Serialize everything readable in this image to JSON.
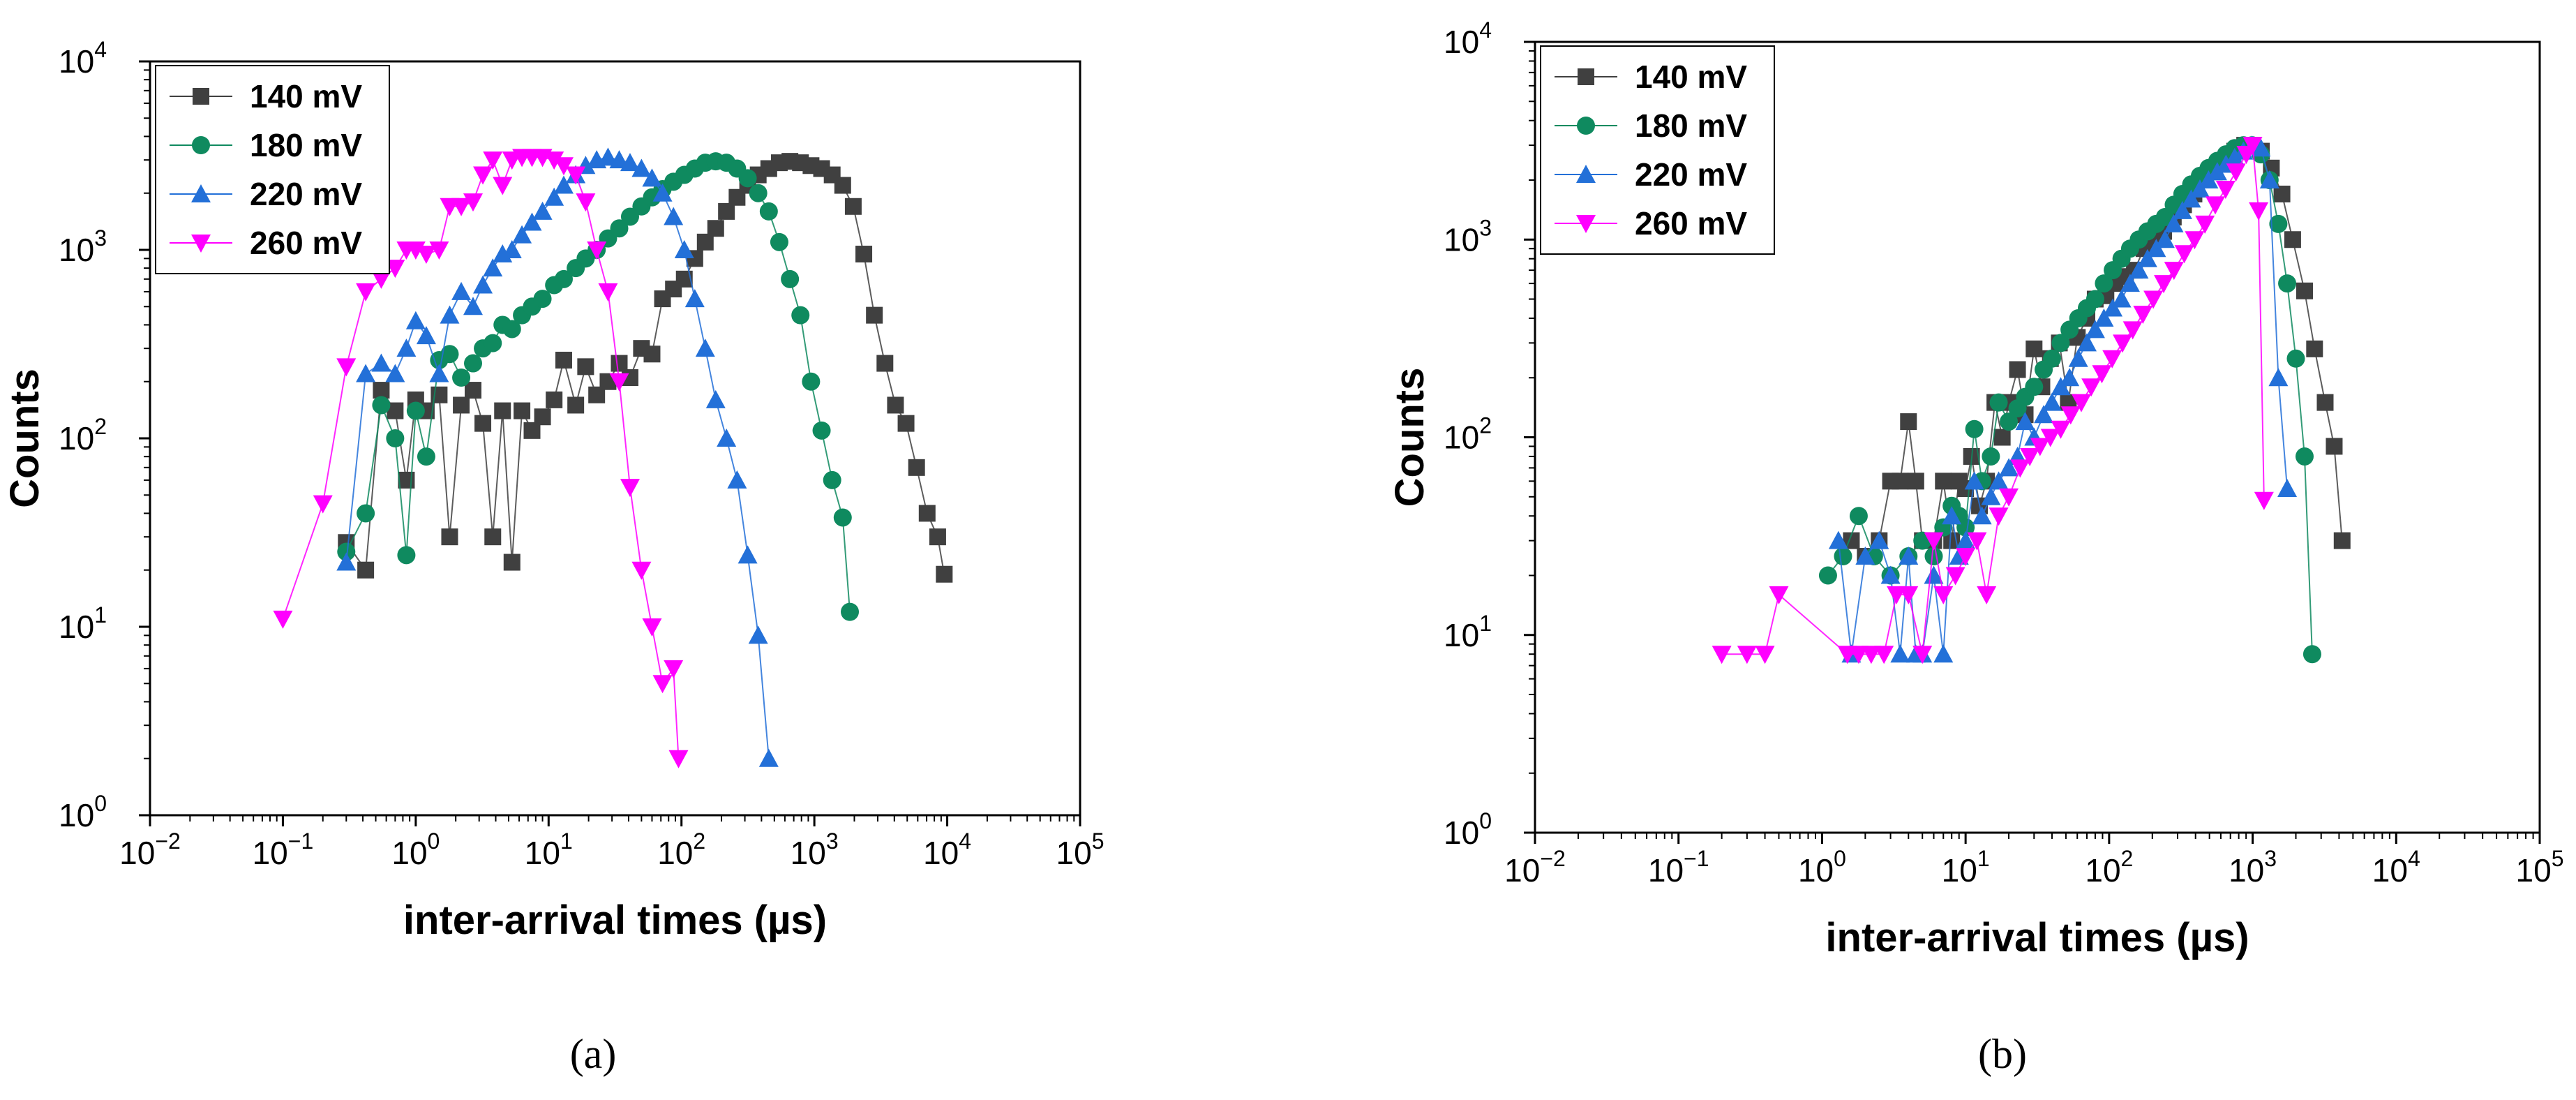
{
  "chart_data": [
    {
      "type": "scatter",
      "caption": "(a)",
      "xlabel": "inter-arrival times (µs)",
      "ylabel": "Counts",
      "xscale": "log",
      "yscale": "log",
      "xlim": [
        0.01,
        100000
      ],
      "ylim": [
        1,
        10000
      ],
      "xticks": [
        {
          "base": "10",
          "exp": "−2"
        },
        {
          "base": "10",
          "exp": "−1"
        },
        {
          "base": "10",
          "exp": "0"
        },
        {
          "base": "10",
          "exp": "1"
        },
        {
          "base": "10",
          "exp": "2"
        },
        {
          "base": "10",
          "exp": "3"
        },
        {
          "base": "10",
          "exp": "4"
        },
        {
          "base": "10",
          "exp": "5"
        }
      ],
      "yticks": [
        {
          "base": "10",
          "exp": "0"
        },
        {
          "base": "10",
          "exp": "1"
        },
        {
          "base": "10",
          "exp": "2"
        },
        {
          "base": "10",
          "exp": "3"
        },
        {
          "base": "10",
          "exp": "4"
        }
      ],
      "legend_position": "top-left",
      "series": [
        {
          "name": "140 mV",
          "color": "#404040",
          "marker": "square",
          "x": [
            0.3,
            0.42,
            0.55,
            0.7,
            0.85,
            1.0,
            1.2,
            1.5,
            1.8,
            2.2,
            2.7,
            3.2,
            3.8,
            4.5,
            5.3,
            6.3,
            7.5,
            9,
            11,
            13,
            16,
            19,
            23,
            28,
            34,
            41,
            50,
            60,
            72,
            87,
            105,
            126,
            151,
            181,
            218,
            262,
            315,
            378,
            454,
            545,
            655,
            786,
            944,
            1134,
            1362,
            1635,
            1963,
            2357,
            2830,
            3398,
            4080,
            4899,
            5882,
            7062,
            8480,
            9500
          ],
          "y": [
            28,
            20,
            180,
            140,
            60,
            160,
            140,
            170,
            30,
            150,
            180,
            120,
            30,
            140,
            22,
            140,
            110,
            130,
            160,
            260,
            150,
            240,
            170,
            200,
            250,
            210,
            300,
            280,
            550,
            620,
            700,
            900,
            1100,
            1300,
            1600,
            1900,
            2200,
            2500,
            2700,
            2900,
            2950,
            2900,
            2800,
            2700,
            2500,
            2200,
            1700,
            950,
            450,
            250,
            150,
            120,
            70,
            40,
            30,
            19
          ]
        },
        {
          "name": "180 mV",
          "color": "#0f8a5f",
          "marker": "circle",
          "x": [
            0.3,
            0.42,
            0.55,
            0.7,
            0.85,
            1.0,
            1.2,
            1.5,
            1.8,
            2.2,
            2.7,
            3.2,
            3.8,
            4.5,
            5.3,
            6.3,
            7.5,
            9,
            11,
            13,
            16,
            19,
            23,
            28,
            34,
            41,
            50,
            60,
            72,
            87,
            105,
            126,
            151,
            181,
            218,
            262,
            315,
            378,
            454,
            545,
            655,
            786,
            944,
            1134,
            1362,
            1635,
            1850
          ],
          "y": [
            25,
            40,
            150,
            100,
            24,
            140,
            80,
            260,
            280,
            210,
            250,
            300,
            320,
            400,
            380,
            450,
            500,
            550,
            650,
            700,
            800,
            900,
            1000,
            1150,
            1300,
            1500,
            1700,
            1900,
            2100,
            2300,
            2500,
            2700,
            2900,
            2950,
            2900,
            2700,
            2400,
            2000,
            1600,
            1100,
            700,
            450,
            200,
            110,
            60,
            38,
            12
          ]
        },
        {
          "name": "220 mV",
          "color": "#2370d8",
          "marker": "triangle-up",
          "x": [
            0.3,
            0.42,
            0.55,
            0.7,
            0.85,
            1.0,
            1.2,
            1.5,
            1.8,
            2.2,
            2.7,
            3.2,
            3.8,
            4.5,
            5.3,
            6.3,
            7.5,
            9,
            11,
            13,
            16,
            19,
            23,
            28,
            34,
            41,
            50,
            60,
            72,
            87,
            105,
            126,
            151,
            181,
            218,
            262,
            315,
            378,
            454
          ],
          "y": [
            22,
            220,
            250,
            220,
            300,
            420,
            350,
            220,
            450,
            600,
            500,
            650,
            800,
            950,
            1000,
            1200,
            1400,
            1600,
            1900,
            2200,
            2500,
            2800,
            3000,
            3100,
            3000,
            2900,
            2700,
            2400,
            2000,
            1500,
            1000,
            550,
            300,
            160,
            100,
            60,
            24,
            9,
            2
          ]
        },
        {
          "name": "260 mV",
          "color": "#ff00ff",
          "marker": "triangle-down",
          "x": [
            0.1,
            0.2,
            0.3,
            0.42,
            0.55,
            0.7,
            0.85,
            1.0,
            1.2,
            1.5,
            1.8,
            2.2,
            2.7,
            3.2,
            3.8,
            4.5,
            5.3,
            6.3,
            7.5,
            9,
            11,
            13,
            16,
            19,
            23,
            28,
            34,
            41,
            50,
            60,
            72,
            87,
            95
          ],
          "y": [
            11,
            45,
            240,
            600,
            700,
            800,
            1000,
            1000,
            950,
            1000,
            1700,
            1700,
            1800,
            2500,
            3000,
            2200,
            3000,
            3100,
            3100,
            3100,
            3000,
            2800,
            2500,
            1800,
            1000,
            600,
            200,
            55,
            20,
            10,
            5,
            6,
            2
          ]
        }
      ]
    },
    {
      "type": "scatter",
      "caption": "(b)",
      "xlabel": "inter-arrival times (µs)",
      "ylabel": "Counts",
      "xscale": "log",
      "yscale": "log",
      "xlim": [
        0.01,
        100000
      ],
      "ylim": [
        1,
        10000
      ],
      "xticks": [
        {
          "base": "10",
          "exp": "−2"
        },
        {
          "base": "10",
          "exp": "−1"
        },
        {
          "base": "10",
          "exp": "0"
        },
        {
          "base": "10",
          "exp": "1"
        },
        {
          "base": "10",
          "exp": "2"
        },
        {
          "base": "10",
          "exp": "3"
        },
        {
          "base": "10",
          "exp": "4"
        },
        {
          "base": "10",
          "exp": "5"
        }
      ],
      "yticks": [
        {
          "base": "10",
          "exp": "0"
        },
        {
          "base": "10",
          "exp": "1"
        },
        {
          "base": "10",
          "exp": "2"
        },
        {
          "base": "10",
          "exp": "3"
        },
        {
          "base": "10",
          "exp": "4"
        }
      ],
      "legend_position": "top-left",
      "series": [
        {
          "name": "140 mV",
          "color": "#404040",
          "marker": "square",
          "x": [
            1.6,
            2.0,
            2.5,
            3.0,
            3.5,
            4.0,
            4.5,
            5,
            6,
            7,
            8,
            9,
            10,
            11,
            12.5,
            14,
            16,
            18,
            20,
            23,
            26,
            30,
            34,
            39,
            45,
            52,
            60,
            70,
            80,
            95,
            110,
            130,
            150,
            175,
            200,
            240,
            280,
            330,
            390,
            460,
            540,
            640,
            750,
            880,
            1000,
            1150,
            1350,
            1600,
            1900,
            2300,
            2700,
            3200,
            3700,
            4200
          ],
          "y": [
            30,
            25,
            30,
            60,
            60,
            120,
            60,
            30,
            30,
            60,
            30,
            60,
            55,
            80,
            45,
            60,
            150,
            100,
            150,
            220,
            130,
            280,
            180,
            250,
            300,
            150,
            320,
            400,
            500,
            520,
            600,
            650,
            700,
            900,
            1000,
            1100,
            1300,
            1500,
            1700,
            2000,
            2200,
            2500,
            2800,
            3000,
            3000,
            2800,
            2300,
            1700,
            1000,
            550,
            280,
            150,
            90,
            30
          ]
        },
        {
          "name": "180 mV",
          "color": "#0f8a5f",
          "marker": "circle",
          "x": [
            1.1,
            1.4,
            1.8,
            2.3,
            3,
            4,
            5,
            6,
            7,
            8,
            9,
            10,
            11.5,
            13,
            15,
            17,
            20,
            23,
            26,
            30,
            35,
            40,
            46,
            53,
            61,
            70,
            80,
            92,
            106,
            122,
            140,
            161,
            185,
            213,
            245,
            282,
            324,
            373,
            429,
            493,
            567,
            652,
            750,
            862,
            992,
            1140,
            1312,
            1510,
            1740,
            2000,
            2300,
            2600
          ],
          "y": [
            20,
            25,
            40,
            25,
            20,
            25,
            30,
            25,
            35,
            45,
            40,
            35,
            110,
            60,
            80,
            150,
            120,
            140,
            160,
            180,
            220,
            250,
            300,
            350,
            400,
            450,
            500,
            600,
            700,
            800,
            900,
            1000,
            1100,
            1200,
            1300,
            1500,
            1700,
            1900,
            2100,
            2300,
            2500,
            2700,
            2900,
            3000,
            3000,
            2700,
            2000,
            1200,
            600,
            250,
            80,
            8
          ]
        },
        {
          "name": "220 mV",
          "color": "#2370d8",
          "marker": "triangle-up",
          "x": [
            1.3,
            1.6,
            2.0,
            2.5,
            3.0,
            3.5,
            4.0,
            4.5,
            5,
            6,
            7,
            8,
            9,
            10,
            11.5,
            13,
            15,
            17,
            20,
            23,
            26,
            30,
            35,
            40,
            46,
            53,
            61,
            70,
            80,
            92,
            106,
            122,
            140,
            161,
            185,
            213,
            245,
            282,
            324,
            373,
            429,
            493,
            567,
            652,
            750,
            862,
            992,
            1140,
            1312,
            1510,
            1740
          ],
          "y": [
            30,
            8,
            25,
            30,
            20,
            8,
            25,
            8,
            8,
            20,
            8,
            40,
            25,
            30,
            60,
            40,
            50,
            60,
            70,
            80,
            120,
            100,
            130,
            150,
            180,
            200,
            250,
            300,
            350,
            400,
            450,
            500,
            600,
            700,
            800,
            900,
            1000,
            1200,
            1400,
            1600,
            1800,
            2000,
            2200,
            2400,
            2600,
            2800,
            3000,
            2900,
            2000,
            200,
            55
          ]
        },
        {
          "name": "260 mV",
          "color": "#ff00ff",
          "marker": "triangle-down",
          "x": [
            0.2,
            0.3,
            0.4,
            0.5,
            1.5,
            1.8,
            2.2,
            2.7,
            3.3,
            4,
            5,
            6,
            7,
            8.5,
            10,
            12,
            14,
            17,
            20,
            24,
            28,
            33,
            39,
            46,
            54,
            64,
            75,
            89,
            105,
            124,
            146,
            172,
            203,
            240,
            283,
            334,
            394,
            465,
            549,
            648,
            765,
            903,
            1000,
            1100,
            1200
          ],
          "y": [
            8,
            8,
            8,
            16,
            8,
            8,
            8,
            8,
            16,
            16,
            8,
            30,
            16,
            20,
            25,
            30,
            16,
            40,
            50,
            70,
            80,
            90,
            100,
            110,
            130,
            150,
            180,
            210,
            250,
            300,
            350,
            420,
            500,
            600,
            700,
            850,
            1000,
            1200,
            1500,
            1800,
            2200,
            2700,
            3000,
            1400,
            48
          ]
        }
      ]
    }
  ]
}
